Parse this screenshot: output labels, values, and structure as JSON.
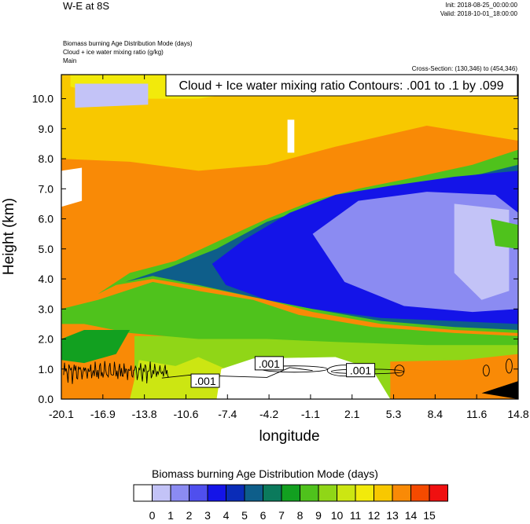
{
  "header": {
    "title": "W-E at 8S",
    "init": "Init: 2018-08-25_00:00:00",
    "valid": "Valid: 2018-10-01_18:00:00",
    "fields": [
      "Biomass burning Age Distribution Mode   (days)",
      "Cloud + ice water mixing ratio   (g/kg)",
      "Main"
    ],
    "cross_section": "Cross-Section: (130,346) to (454,346)"
  },
  "chart_data": {
    "type": "heatmap",
    "title": "Cloud + Ice water mixing ratio Contours: .001 to .1 by .099",
    "xlabel": "longitude",
    "ylabel": "Height (km)",
    "xlim": [
      -20.1,
      14.8
    ],
    "ylim": [
      0.0,
      10.8
    ],
    "x_ticks": [
      "-20.1",
      "-16.9",
      "-13.8",
      "-10.6",
      "-7.4",
      "-4.2",
      "-1.1",
      "2.1",
      "5.3",
      "8.4",
      "11.6",
      "14.8"
    ],
    "y_ticks": [
      "0.0",
      "1.0",
      "2.0",
      "3.0",
      "4.0",
      "5.0",
      "6.0",
      "7.0",
      "8.0",
      "9.0",
      "10.0"
    ],
    "contour_labels": [
      ".001",
      ".001",
      ".001"
    ],
    "colorbar": {
      "title": "Biomass burning Age Distribution Mode  (days)",
      "labels": [
        "0",
        "1",
        "2",
        "3",
        "4",
        "5",
        "6",
        "7",
        "8",
        "9",
        "10",
        "11",
        "12",
        "13",
        "14",
        "15"
      ],
      "colors": [
        "#ffffff",
        "#c3c3f7",
        "#8b8bf2",
        "#4f4fee",
        "#1414e8",
        "#0a2cb8",
        "#0e5e8a",
        "#0b7a5c",
        "#12a020",
        "#4fc21c",
        "#90d617",
        "#cce612",
        "#f2ea0b",
        "#f8c800",
        "#f98a06",
        "#f54a00",
        "#f01010"
      ]
    },
    "legend": "bottom"
  }
}
